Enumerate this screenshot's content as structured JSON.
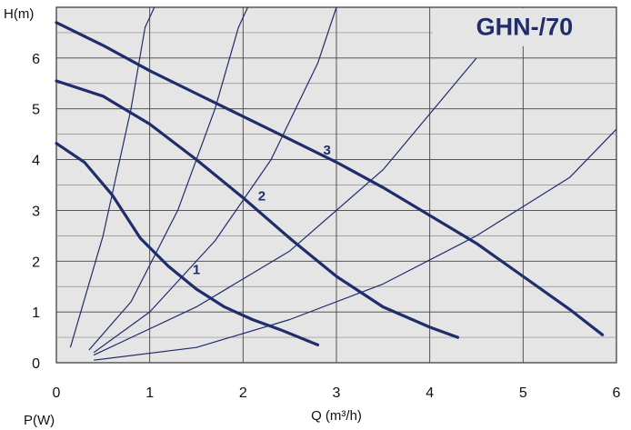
{
  "chart_data": {
    "type": "line",
    "title": "GHN-/70",
    "xlabel": "Q",
    "xlabel_unit": "(m³/h)",
    "ylabel": "H(m)",
    "extra_label": "P(W)",
    "xlim": [
      0,
      6
    ],
    "ylim": [
      0,
      7
    ],
    "x_ticks": [
      "0",
      "1",
      "2",
      "3",
      "4",
      "5",
      "6"
    ],
    "y_ticks": [
      "0",
      "1",
      "2",
      "3",
      "4",
      "5",
      "6"
    ],
    "grid": true,
    "background": "#e5e5e5",
    "line_color": "#1f2d6b",
    "pump_curves": [
      {
        "label": "1",
        "x": [
          0,
          0.3,
          0.6,
          0.9,
          1.2,
          1.5,
          1.8,
          2.1,
          2.4,
          2.8
        ],
        "y": [
          4.32,
          3.95,
          3.3,
          2.45,
          1.9,
          1.45,
          1.1,
          0.85,
          0.65,
          0.35
        ]
      },
      {
        "label": "2",
        "x": [
          0,
          0.5,
          1.0,
          1.5,
          2.0,
          2.5,
          3.0,
          3.5,
          4.0,
          4.3
        ],
        "y": [
          5.55,
          5.25,
          4.7,
          4.0,
          3.25,
          2.45,
          1.7,
          1.1,
          0.7,
          0.5
        ]
      },
      {
        "label": "3",
        "x": [
          0,
          0.5,
          1.0,
          1.5,
          2.0,
          2.5,
          3.0,
          3.5,
          4.0,
          4.5,
          5.0,
          5.5,
          5.85
        ],
        "y": [
          6.7,
          6.25,
          5.75,
          5.3,
          4.85,
          4.4,
          3.95,
          3.45,
          2.9,
          2.35,
          1.7,
          1.05,
          0.55
        ]
      }
    ],
    "system_curves": [
      {
        "x": [
          0.15,
          0.5,
          0.8,
          0.95,
          1.05
        ],
        "y": [
          0.3,
          2.5,
          5.0,
          6.6,
          7.0
        ]
      },
      {
        "x": [
          0.35,
          0.8,
          1.3,
          1.7,
          1.95,
          2.05
        ],
        "y": [
          0.25,
          1.2,
          3.0,
          5.0,
          6.6,
          7.0
        ]
      },
      {
        "x": [
          0.4,
          1.0,
          1.7,
          2.3,
          2.8,
          3.0
        ],
        "y": [
          0.2,
          1.0,
          2.4,
          4.0,
          5.9,
          7.0
        ]
      },
      {
        "x": [
          0.4,
          1.5,
          2.5,
          3.5,
          4.5
        ],
        "y": [
          0.15,
          1.1,
          2.2,
          3.8,
          6.0
        ]
      },
      {
        "x": [
          0.4,
          1.5,
          2.5,
          3.5,
          4.5,
          5.5,
          6.0
        ],
        "y": [
          0.05,
          0.3,
          0.85,
          1.55,
          2.5,
          3.65,
          4.6
        ]
      }
    ],
    "curve_label_points": [
      {
        "label": "1",
        "x": 1.5,
        "y": 1.75
      },
      {
        "label": "2",
        "x": 2.2,
        "y": 3.2
      },
      {
        "label": "3",
        "x": 2.9,
        "y": 4.1
      }
    ]
  }
}
